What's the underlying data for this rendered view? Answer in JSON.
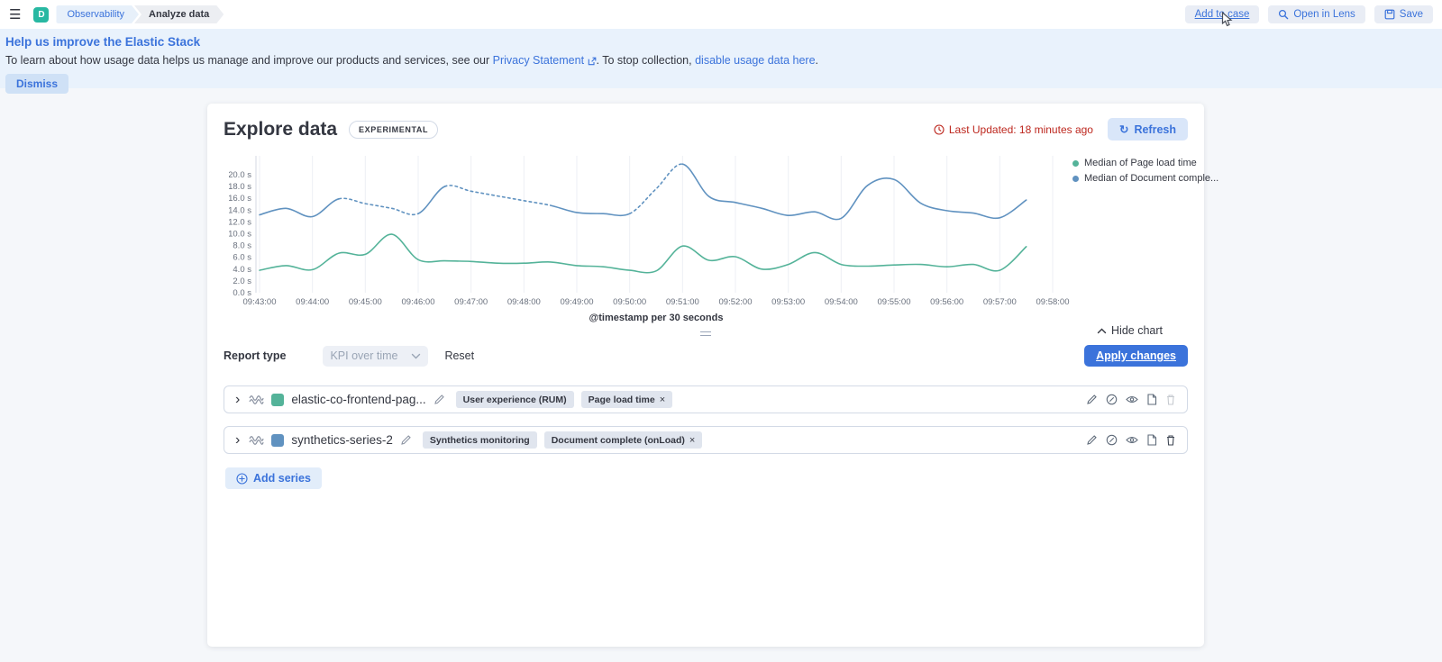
{
  "topbar": {
    "logo_letter": "D",
    "breadcrumbs": [
      {
        "label": "Observability"
      },
      {
        "label": "Analyze data"
      }
    ],
    "actions": {
      "add_to_case": "Add to case",
      "open_in_lens": "Open in Lens",
      "save": "Save"
    }
  },
  "banner": {
    "title": "Help us improve the Elastic Stack",
    "body_prefix": "To learn about how usage data helps us manage and improve our products and services, see our ",
    "privacy_link": "Privacy Statement",
    "body_middle": ". To stop collection, ",
    "disable_link": "disable usage data here",
    "body_suffix": ".",
    "dismiss": "Dismiss"
  },
  "panel": {
    "title": "Explore data",
    "badge": "EXPERIMENTAL",
    "last_updated": "Last Updated: 18 minutes ago",
    "refresh": "Refresh",
    "hide_chart": "Hide chart",
    "report_type_label": "Report type",
    "report_type_value": "KPI over time",
    "reset": "Reset",
    "apply_changes": "Apply changes",
    "add_series": "Add series"
  },
  "series_rows": [
    {
      "name": "elastic-co-frontend-pag...",
      "color": "#54B399",
      "badges": [
        {
          "label": "User experience (RUM)"
        },
        {
          "label": "Page load time"
        }
      ],
      "trash_enabled": false
    },
    {
      "name": "synthetics-series-2",
      "color": "#6092C0",
      "badges": [
        {
          "label": "Synthetics monitoring"
        },
        {
          "label": "Document complete (onLoad)"
        }
      ],
      "trash_enabled": true
    }
  ],
  "chart_data": {
    "type": "line",
    "x_axis_title": "@timestamp per 30 seconds",
    "x_ticks": [
      "09:43:00",
      "09:44:00",
      "09:45:00",
      "09:46:00",
      "09:47:00",
      "09:48:00",
      "09:49:00",
      "09:50:00",
      "09:51:00",
      "09:52:00",
      "09:53:00",
      "09:54:00",
      "09:55:00",
      "09:56:00",
      "09:57:00",
      "09:58:00"
    ],
    "y_ticks": [
      "0.0 s",
      "2.0 s",
      "4.0 s",
      "6.0 s",
      "8.0 s",
      "10.0 s",
      "12.0 s",
      "14.0 s",
      "16.0 s",
      "18.0 s",
      "20.0 s"
    ],
    "y_tick_step": 2,
    "ylim": [
      0,
      23.2
    ],
    "interval_seconds": 30,
    "legend_position": "right",
    "series": [
      {
        "name": "Median of Page load time",
        "color": "#54B399",
        "values": [
          3.8,
          4.6,
          3.9,
          6.7,
          6.5,
          9.9,
          5.6,
          5.4,
          5.3,
          5.0,
          5.0,
          5.2,
          4.6,
          4.4,
          3.8,
          3.7,
          7.9,
          5.5,
          6.1,
          4.0,
          4.8,
          6.8,
          4.8,
          4.5,
          4.7,
          4.8,
          4.4,
          4.8,
          3.8,
          7.8
        ]
      },
      {
        "name": "Median of Document comple...",
        "color": "#6092C0",
        "values": [
          13.2,
          14.3,
          12.9,
          15.9,
          15.1,
          14.3,
          13.4,
          18.0,
          17.2,
          16.4,
          15.6,
          14.8,
          13.6,
          13.4,
          13.4,
          17.6,
          21.8,
          16.3,
          15.3,
          14.3,
          13.1,
          13.7,
          12.6,
          18.2,
          19.2,
          15.2,
          13.9,
          13.5,
          12.7,
          15.7
        ],
        "dash_ranges": [
          [
            3,
            6
          ],
          [
            7,
            11
          ],
          [
            14,
            16
          ]
        ]
      }
    ]
  },
  "colors": {
    "accent": "#3B73DB",
    "danger": "#BD271E",
    "series_green": "#54B399",
    "series_blue": "#6092C0"
  },
  "icons": {
    "menu": "☰",
    "refresh": "↻",
    "remove": "×",
    "chevron_right": "›"
  }
}
